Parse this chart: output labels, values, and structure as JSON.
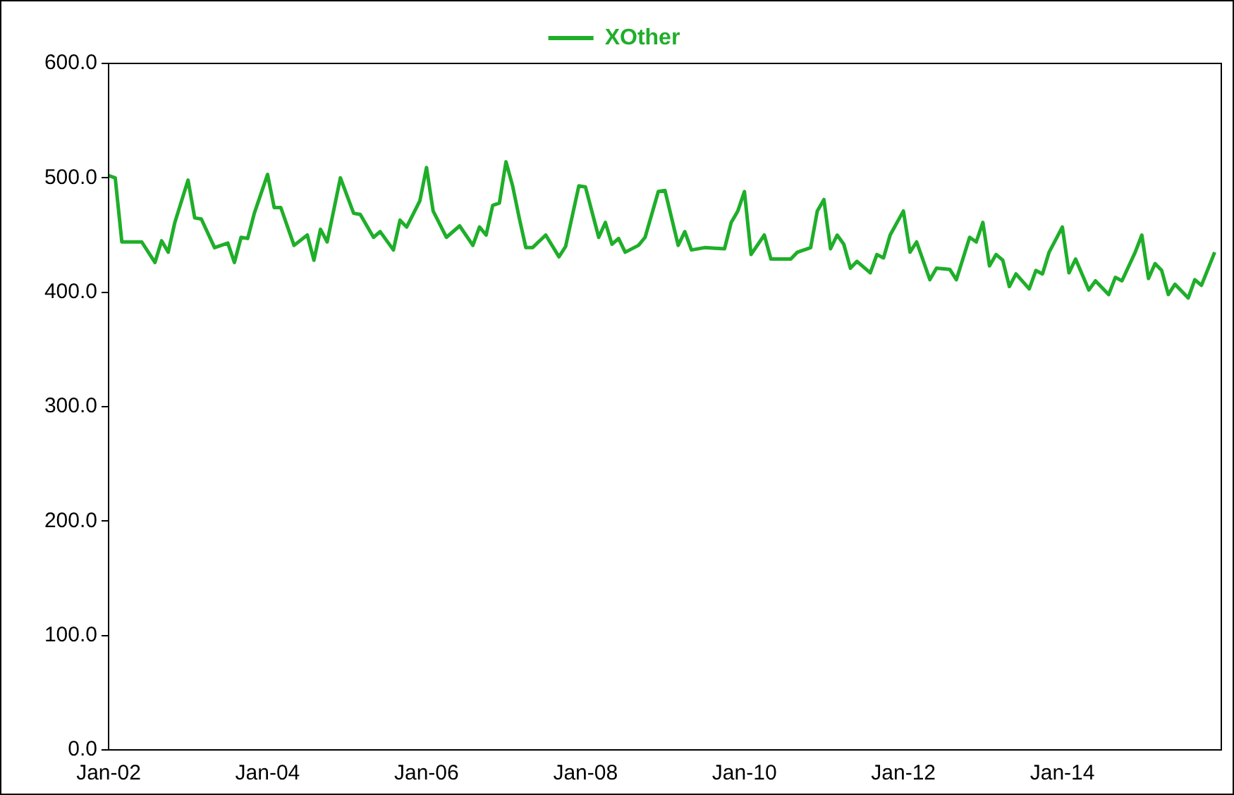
{
  "chart_data": {
    "type": "line",
    "legend": "top",
    "grid": false,
    "marker": "none",
    "line_style": "solid",
    "xlim": [
      "2002-01",
      "2016-01"
    ],
    "xticks": [
      {
        "value": "2002-01",
        "label": "Jan-02"
      },
      {
        "value": "2004-01",
        "label": "Jan-04"
      },
      {
        "value": "2006-01",
        "label": "Jan-06"
      },
      {
        "value": "2008-01",
        "label": "Jan-08"
      },
      {
        "value": "2010-01",
        "label": "Jan-10"
      },
      {
        "value": "2012-01",
        "label": "Jan-12"
      },
      {
        "value": "2014-01",
        "label": "Jan-14"
      },
      {
        "value": "2016-01",
        "label": null
      }
    ],
    "ylim": [
      0,
      600
    ],
    "yticks": [
      {
        "value": 0,
        "label": "0.0"
      },
      {
        "value": 100,
        "label": "100.0"
      },
      {
        "value": 200,
        "label": "200.0"
      },
      {
        "value": 300,
        "label": "300.0"
      },
      {
        "value": 400,
        "label": "400.0"
      },
      {
        "value": 500,
        "label": "500.0"
      },
      {
        "value": 600,
        "label": "600.0"
      }
    ],
    "x": [
      "2002-01",
      "2002-02",
      "2002-03",
      "2002-06",
      "2002-08",
      "2002-09",
      "2002-10",
      "2002-11",
      "2003-01",
      "2003-02",
      "2003-03",
      "2003-05",
      "2003-07",
      "2003-08",
      "2003-09",
      "2003-10",
      "2003-11",
      "2004-01",
      "2004-02",
      "2004-03",
      "2004-05",
      "2004-07",
      "2004-08",
      "2004-09",
      "2004-10",
      "2004-12",
      "2005-02",
      "2005-03",
      "2005-05",
      "2005-06",
      "2005-08",
      "2005-09",
      "2005-10",
      "2005-12",
      "2006-01",
      "2006-02",
      "2006-04",
      "2006-06",
      "2006-08",
      "2006-09",
      "2006-10",
      "2006-11",
      "2006-12",
      "2007-01",
      "2007-02",
      "2007-03",
      "2007-04",
      "2007-05",
      "2007-07",
      "2007-09",
      "2007-10",
      "2007-12",
      "2008-01",
      "2008-03",
      "2008-04",
      "2008-05",
      "2008-06",
      "2008-07",
      "2008-09",
      "2008-10",
      "2008-12",
      "2009-01",
      "2009-03",
      "2009-04",
      "2009-05",
      "2009-07",
      "2009-10",
      "2009-11",
      "2009-12",
      "2010-01",
      "2010-02",
      "2010-04",
      "2010-05",
      "2010-08",
      "2010-09",
      "2010-11",
      "2010-12",
      "2011-01",
      "2011-02",
      "2011-03",
      "2011-04",
      "2011-05",
      "2011-06",
      "2011-08",
      "2011-09",
      "2011-10",
      "2011-11",
      "2012-01",
      "2012-02",
      "2012-03",
      "2012-05",
      "2012-06",
      "2012-08",
      "2012-09",
      "2012-11",
      "2012-12",
      "2013-01",
      "2013-02",
      "2013-03",
      "2013-04",
      "2013-05",
      "2013-06",
      "2013-08",
      "2013-09",
      "2013-10",
      "2013-11",
      "2014-01",
      "2014-02",
      "2014-03",
      "2014-05",
      "2014-06",
      "2014-08",
      "2014-09",
      "2014-10",
      "2014-12",
      "2015-01",
      "2015-02",
      "2015-03",
      "2015-04",
      "2015-05",
      "2015-06",
      "2015-08",
      "2015-09",
      "2015-10",
      "2015-12"
    ],
    "series": [
      {
        "name": "XOther",
        "color": "#1fae2a",
        "values": [
          502,
          500,
          444,
          444,
          426,
          445,
          435,
          461,
          498,
          465,
          464,
          439,
          443,
          426,
          448,
          447,
          469,
          503,
          474,
          474,
          441,
          450,
          428,
          455,
          444,
          500,
          469,
          468,
          448,
          453,
          437,
          463,
          457,
          480,
          509,
          471,
          448,
          458,
          441,
          457,
          450,
          476,
          478,
          514,
          493,
          465,
          439,
          439,
          450,
          431,
          440,
          493,
          492,
          448,
          461,
          442,
          447,
          435,
          441,
          448,
          488,
          489,
          441,
          453,
          437,
          439,
          438,
          461,
          471,
          488,
          433,
          450,
          429,
          429,
          435,
          439,
          471,
          481,
          438,
          450,
          442,
          421,
          427,
          417,
          433,
          430,
          450,
          471,
          435,
          444,
          411,
          421,
          420,
          411,
          448,
          444,
          461,
          423,
          433,
          428,
          405,
          416,
          403,
          419,
          416,
          435,
          457,
          417,
          429,
          402,
          410,
          398,
          413,
          410,
          435,
          450,
          412,
          425,
          419,
          398,
          407,
          395,
          411,
          406,
          435
        ]
      }
    ]
  }
}
